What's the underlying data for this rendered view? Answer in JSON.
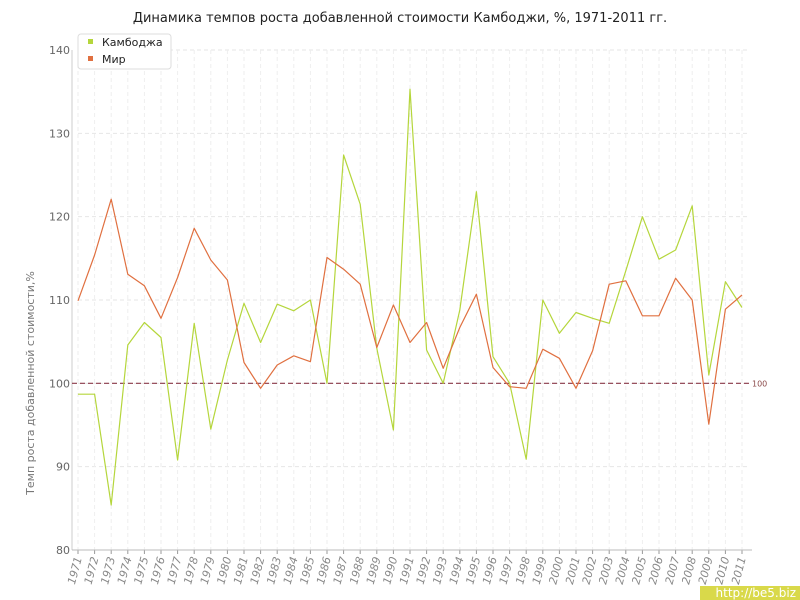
{
  "chart_data": {
    "type": "line",
    "title": "Динамика темпов роста добавленной стоимости Камбоджи, %, 1971-2011 гг.",
    "xlabel": "",
    "ylabel": "Темп роста добавленной стоимости,%",
    "ylim": [
      80,
      140
    ],
    "yticks": [
      80,
      90,
      100,
      110,
      120,
      130,
      140
    ],
    "grid": true,
    "legend_position": "top-left",
    "categories": [
      "1971",
      "1972",
      "1973",
      "1974",
      "1975",
      "1976",
      "1977",
      "1978",
      "1979",
      "1980",
      "1981",
      "1982",
      "1983",
      "1984",
      "1985",
      "1986",
      "1987",
      "1988",
      "1989",
      "1990",
      "1991",
      "1992",
      "1993",
      "1994",
      "1995",
      "1996",
      "1997",
      "1998",
      "1999",
      "2000",
      "2001",
      "2002",
      "2003",
      "2004",
      "2005",
      "2006",
      "2007",
      "2008",
      "2009",
      "2010",
      "2011"
    ],
    "series": [
      {
        "name": "Камбоджа",
        "color": "#b5d63c",
        "values": [
          98.7,
          98.7,
          85.4,
          104.6,
          107.3,
          105.5,
          90.8,
          107.2,
          94.5,
          102.8,
          109.6,
          104.9,
          109.5,
          108.7,
          110.0,
          100.0,
          127.4,
          121.5,
          104.2,
          94.4,
          135.3,
          104.0,
          100.0,
          108.8,
          123.0,
          103.2,
          100.0,
          90.9,
          110.0,
          106.0,
          108.5,
          107.8,
          107.2,
          113.5,
          120.0,
          114.9,
          116.0,
          121.3,
          101.0,
          112.2,
          109.1
        ]
      },
      {
        "name": "Мир",
        "color": "#e07040",
        "values": [
          109.9,
          115.4,
          122.1,
          113.1,
          111.7,
          107.8,
          112.7,
          118.6,
          114.8,
          112.4,
          102.5,
          99.4,
          102.2,
          103.3,
          102.6,
          115.1,
          113.7,
          111.9,
          104.3,
          109.4,
          104.9,
          107.3,
          101.8,
          106.7,
          110.7,
          101.9,
          99.6,
          99.4,
          104.1,
          103.0,
          99.4,
          103.9,
          111.9,
          112.3,
          108.1,
          108.1,
          112.6,
          110.0,
          95.1,
          108.9,
          110.6
        ]
      }
    ],
    "reference_line": {
      "value": 100,
      "label": "100",
      "color": "#8b3a4a"
    }
  },
  "watermark": {
    "text": "http://be5.biz"
  }
}
